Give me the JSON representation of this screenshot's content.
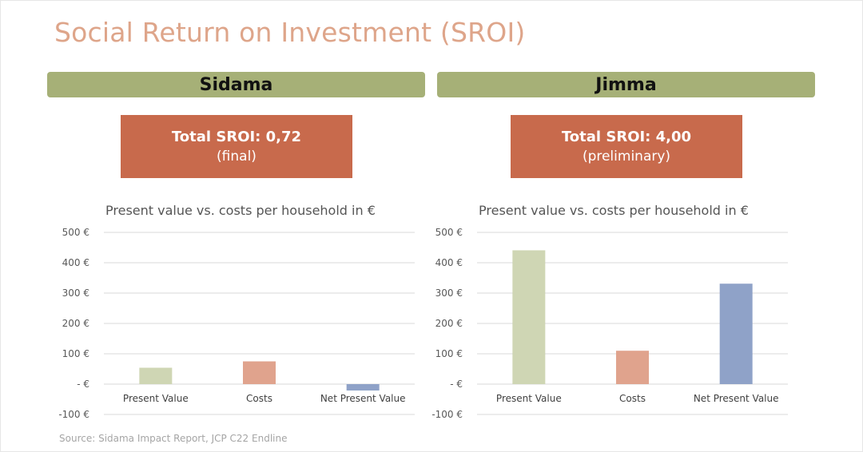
{
  "title": "Social Return on Investment (SROI)",
  "regions": [
    {
      "name": "Sidama",
      "sroi_label": "Total SROI: 0,72",
      "sroi_status": "(final)"
    },
    {
      "name": "Jimma",
      "sroi_label": "Total SROI: 4,00",
      "sroi_status": "(preliminary)"
    }
  ],
  "source": "Source: Sidama Impact Report, JCP C22 Endline",
  "colors": {
    "title": "#dea58a",
    "header_bg": "#a6b077",
    "sroi_bg": "#c86a4c",
    "present_value": "#cfd6b4",
    "costs": "#e0a38d",
    "net_present_value": "#8fa2c8"
  },
  "chart_data": [
    {
      "type": "bar",
      "title": "Present value vs. costs per household in €",
      "categories": [
        "Present Value",
        "Costs",
        "Net Present Value"
      ],
      "values": [
        54,
        75,
        -21
      ],
      "ylim": [
        -100,
        500
      ],
      "ticks": [
        500,
        400,
        300,
        200,
        100,
        0,
        -100
      ],
      "tick_labels": [
        "500 €",
        "400 €",
        "300 €",
        "200 €",
        "100 €",
        "-  €",
        "-100 €"
      ],
      "grid": true,
      "xlabel": "",
      "ylabel": ""
    },
    {
      "type": "bar",
      "title": "Present value vs. costs per household in €",
      "categories": [
        "Present Value",
        "Costs",
        "Net Present Value"
      ],
      "values": [
        441,
        110,
        331
      ],
      "ylim": [
        -100,
        500
      ],
      "ticks": [
        500,
        400,
        300,
        200,
        100,
        0,
        -100
      ],
      "tick_labels": [
        "500 €",
        "400 €",
        "300 €",
        "200 €",
        "100 €",
        "-  €",
        "-100 €"
      ],
      "grid": true,
      "xlabel": "",
      "ylabel": ""
    }
  ]
}
